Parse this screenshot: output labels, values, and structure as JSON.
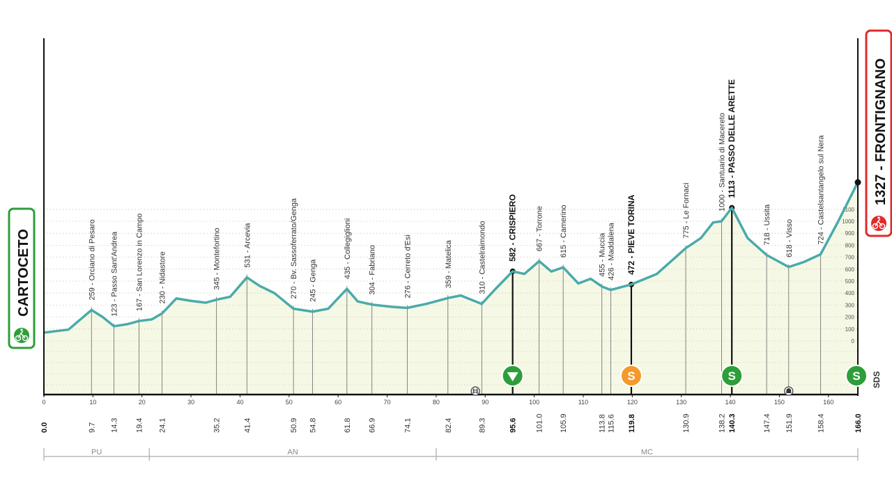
{
  "chart_data": {
    "type": "area",
    "x_unit": "km",
    "y_unit": "m",
    "xlim": [
      0,
      166
    ],
    "x_ticks": [
      0,
      10,
      20,
      30,
      40,
      50,
      60,
      70,
      80,
      90,
      100,
      110,
      120,
      130,
      140,
      150,
      160
    ],
    "alt_ticks": [
      0,
      100,
      200,
      300,
      400,
      500,
      600,
      700,
      800,
      900,
      1000,
      1100
    ],
    "profile": [
      {
        "x": 0,
        "y": 70
      },
      {
        "x": 5,
        "y": 95
      },
      {
        "x": 9.7,
        "y": 259
      },
      {
        "x": 12,
        "y": 200
      },
      {
        "x": 14.3,
        "y": 123
      },
      {
        "x": 17,
        "y": 140
      },
      {
        "x": 19.4,
        "y": 167
      },
      {
        "x": 22,
        "y": 180
      },
      {
        "x": 24.1,
        "y": 230
      },
      {
        "x": 27,
        "y": 355
      },
      {
        "x": 30,
        "y": 335
      },
      {
        "x": 33,
        "y": 320
      },
      {
        "x": 35.2,
        "y": 345
      },
      {
        "x": 38,
        "y": 370
      },
      {
        "x": 41.4,
        "y": 531
      },
      {
        "x": 44,
        "y": 460
      },
      {
        "x": 47,
        "y": 400
      },
      {
        "x": 50.9,
        "y": 270
      },
      {
        "x": 54.8,
        "y": 245
      },
      {
        "x": 58,
        "y": 270
      },
      {
        "x": 61.8,
        "y": 435
      },
      {
        "x": 64,
        "y": 330
      },
      {
        "x": 66.9,
        "y": 304
      },
      {
        "x": 71,
        "y": 285
      },
      {
        "x": 74.1,
        "y": 276
      },
      {
        "x": 78,
        "y": 310
      },
      {
        "x": 82.4,
        "y": 359
      },
      {
        "x": 85,
        "y": 380
      },
      {
        "x": 89.3,
        "y": 310
      },
      {
        "x": 92,
        "y": 430
      },
      {
        "x": 95.6,
        "y": 582
      },
      {
        "x": 98,
        "y": 560
      },
      {
        "x": 101,
        "y": 667
      },
      {
        "x": 103.5,
        "y": 580
      },
      {
        "x": 105.9,
        "y": 615
      },
      {
        "x": 109,
        "y": 480
      },
      {
        "x": 111.5,
        "y": 520
      },
      {
        "x": 113.8,
        "y": 455
      },
      {
        "x": 115.6,
        "y": 426
      },
      {
        "x": 119.8,
        "y": 472
      },
      {
        "x": 125,
        "y": 560
      },
      {
        "x": 130.9,
        "y": 775
      },
      {
        "x": 134,
        "y": 860
      },
      {
        "x": 136.5,
        "y": 990
      },
      {
        "x": 138.2,
        "y": 1000
      },
      {
        "x": 140.3,
        "y": 1113
      },
      {
        "x": 143.5,
        "y": 860
      },
      {
        "x": 147.4,
        "y": 718
      },
      {
        "x": 151.9,
        "y": 618
      },
      {
        "x": 155,
        "y": 660
      },
      {
        "x": 158.4,
        "y": 724
      },
      {
        "x": 162,
        "y": 1000
      },
      {
        "x": 166,
        "y": 1327
      }
    ],
    "waypoints": [
      {
        "km": 9.7,
        "km_label": "9.7",
        "label": "259 - Orciano di Pesaro",
        "major": false
      },
      {
        "km": 14.3,
        "km_label": "14.3",
        "label": "123 - Passo Sant'Andrea",
        "major": false
      },
      {
        "km": 19.4,
        "km_label": "19.4",
        "label": "167 - San Lorenzo in Campo",
        "major": false
      },
      {
        "km": 24.1,
        "km_label": "24.1",
        "label": "230 - Nidastore",
        "major": false
      },
      {
        "km": 35.2,
        "km_label": "35.2",
        "label": "345 - Montefortino",
        "major": false
      },
      {
        "km": 41.4,
        "km_label": "41.4",
        "label": "531 - Arcevia",
        "major": false
      },
      {
        "km": 50.9,
        "km_label": "50.9",
        "label": "270 - Bv. Sassoferrato/Genga",
        "major": false
      },
      {
        "km": 54.8,
        "km_label": "54.8",
        "label": "245 - Genga",
        "major": false
      },
      {
        "km": 61.8,
        "km_label": "61.8",
        "label": "435 - Collegiglioni",
        "major": false
      },
      {
        "km": 66.9,
        "km_label": "66.9",
        "label": "304 - Fabriano",
        "major": false
      },
      {
        "km": 74.1,
        "km_label": "74.1",
        "label": "276 - Cerreto d'Esi",
        "major": false
      },
      {
        "km": 82.4,
        "km_label": "82.4",
        "label": "359 - Matelica",
        "major": false
      },
      {
        "km": 89.3,
        "km_label": "89.3",
        "label": "310 - Castelraimondo",
        "major": false
      },
      {
        "km": 95.6,
        "km_label": "95.6",
        "label": "582 - CRISPIERO",
        "major": true
      },
      {
        "km": 101.0,
        "km_label": "101.0",
        "label": "667 - Torrone",
        "major": false
      },
      {
        "km": 105.9,
        "km_label": "105.9",
        "label": "615 - Camerino",
        "major": false
      },
      {
        "km": 113.8,
        "km_label": "113.8",
        "label": "455 - Muccia",
        "major": false
      },
      {
        "km": 115.6,
        "km_label": "115.6",
        "label": "426 - Maddalena",
        "major": false
      },
      {
        "km": 119.8,
        "km_label": "119.8",
        "label": "472 - PIEVE TORINA",
        "major": true
      },
      {
        "km": 130.9,
        "km_label": "130.9",
        "label": "775 - Le Fornaci",
        "major": false
      },
      {
        "km": 138.2,
        "km_label": "138.2",
        "label": "1000 - Santuario di Macereto",
        "major": false
      },
      {
        "km": 140.3,
        "km_label": "140.3",
        "label": "1113 - PASSO DELLE ARETTE",
        "major": true
      },
      {
        "km": 147.4,
        "km_label": "147.4",
        "label": "718 - Ussita",
        "major": false
      },
      {
        "km": 151.9,
        "km_label": "151.9",
        "label": "618 - Visso",
        "major": false
      },
      {
        "km": 158.4,
        "km_label": "158.4",
        "label": "724 - Castelsantangelo sul Nera",
        "major": false
      }
    ],
    "start": {
      "km_label": "0.0",
      "name": "CARTOCETO"
    },
    "finish": {
      "km_label": "166.0",
      "name": "1327 - FRONTIGNANO"
    },
    "markers": [
      {
        "km": 95.6,
        "kind": "feed",
        "color": "#2e9e3a"
      },
      {
        "km": 119.8,
        "kind": "sprint",
        "symbol": "S",
        "color": "#f39a2b"
      },
      {
        "km": 140.3,
        "kind": "climb",
        "symbol": "S",
        "color": "#2e9e3a"
      },
      {
        "km": 166.0,
        "kind": "climb",
        "symbol": "S",
        "color": "#2e9e3a"
      }
    ],
    "other_icons": [
      {
        "km": 88,
        "kind": "level-crossing-icon"
      },
      {
        "km": 151.9,
        "kind": "tunnel-icon"
      }
    ],
    "provinces": [
      {
        "name": "PU",
        "from": 0,
        "to": 21.5
      },
      {
        "name": "AN",
        "from": 21.5,
        "to": 80
      },
      {
        "name": "MC",
        "from": 80,
        "to": 166
      }
    ],
    "brand": "SDS",
    "colors": {
      "profile_line": "#4aaba8",
      "fill": "#f6f8e6",
      "start_green": "#2e9e3a",
      "finish_red": "#e02a2a"
    }
  }
}
